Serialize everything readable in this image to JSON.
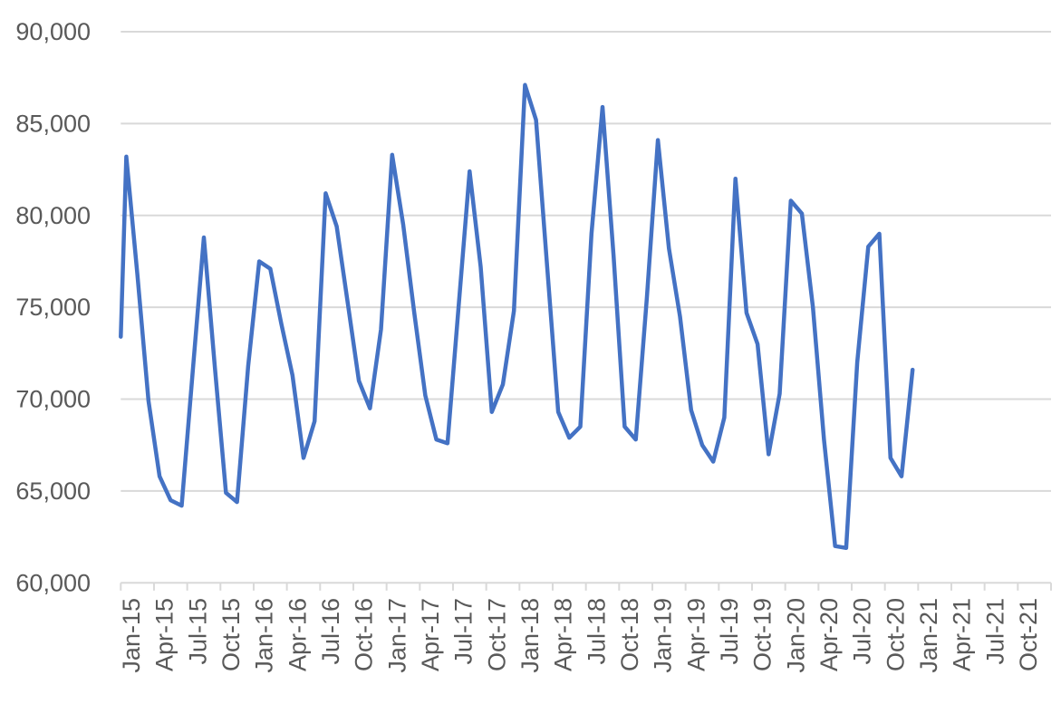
{
  "chart_data": {
    "type": "line",
    "title": "",
    "legend": "none",
    "grid": "horizontal",
    "series": [
      {
        "name": "monthly-series",
        "categories": [
          "Jan-15",
          "Feb-15",
          "Mar-15",
          "Apr-15",
          "May-15",
          "Jun-15",
          "Jul-15",
          "Aug-15",
          "Sep-15",
          "Oct-15",
          "Nov-15",
          "Dec-15",
          "Jan-16",
          "Feb-16",
          "Mar-16",
          "Apr-16",
          "May-16",
          "Jun-16",
          "Jul-16",
          "Aug-16",
          "Sep-16",
          "Oct-16",
          "Nov-16",
          "Dec-16",
          "Jan-17",
          "Feb-17",
          "Mar-17",
          "Apr-17",
          "May-17",
          "Jun-17",
          "Jul-17",
          "Aug-17",
          "Sep-17",
          "Oct-17",
          "Nov-17",
          "Dec-17",
          "Jan-18",
          "Feb-18",
          "Mar-18",
          "Apr-18",
          "May-18",
          "Jun-18",
          "Jul-18",
          "Aug-18",
          "Sep-18",
          "Oct-18",
          "Nov-18",
          "Dec-18",
          "Jan-19",
          "Feb-19",
          "Mar-19",
          "Apr-19",
          "May-19",
          "Jun-19",
          "Jul-19",
          "Aug-19",
          "Sep-19",
          "Oct-19",
          "Nov-19",
          "Dec-19",
          "Jan-20",
          "Feb-20",
          "Mar-20",
          "Apr-20",
          "May-20",
          "Jun-20",
          "Jul-20",
          "Aug-20",
          "Sep-20",
          "Oct-20",
          "Nov-20",
          "Dec-20"
        ],
        "values": [
          83200,
          76800,
          69900,
          65800,
          64500,
          64200,
          71500,
          78800,
          71700,
          64900,
          64400,
          71800,
          77500,
          77100,
          74100,
          71300,
          66800,
          68800,
          81200,
          79400,
          75200,
          71000,
          69500,
          73800,
          83300,
          79500,
          74700,
          70200,
          67800,
          67600,
          75000,
          82400,
          77200,
          69300,
          70800,
          74800,
          87100,
          85200,
          77200,
          69300,
          67900,
          68500,
          79000,
          85900,
          77800,
          68500,
          67800,
          75500,
          84100,
          78200,
          74500,
          69400,
          67500,
          66600,
          69000,
          82000,
          74700,
          73000,
          67000,
          70300,
          80800,
          80100,
          75000,
          67800,
          62000,
          61900,
          72000,
          78300,
          79000,
          66800,
          65800,
          71600
        ],
        "left_edge_entry_value": 73400
      }
    ],
    "x_axis": {
      "total_month_slots": 84,
      "tick_every_months": 3,
      "tick_labels": [
        "Jan-15",
        "Apr-15",
        "Jul-15",
        "Oct-15",
        "Jan-16",
        "Apr-16",
        "Jul-16",
        "Oct-16",
        "Jan-17",
        "Apr-17",
        "Jul-17",
        "Oct-17",
        "Jan-18",
        "Apr-18",
        "Jul-18",
        "Oct-18",
        "Jan-19",
        "Apr-19",
        "Jul-19",
        "Oct-19",
        "Jan-20",
        "Apr-20",
        "Jul-20",
        "Oct-20",
        "Jan-21",
        "Apr-21",
        "Jul-21",
        "Oct-21"
      ],
      "label_rotation_degrees": -90
    },
    "y_axis": {
      "min": 60000,
      "max": 90000,
      "step": 5000,
      "tick_labels": [
        "90,000",
        "85,000",
        "80,000",
        "75,000",
        "70,000",
        "65,000",
        "60,000"
      ]
    },
    "colors": {
      "line": "#4472C4",
      "gridline": "#D9D9D9",
      "axis": "#D9D9D9",
      "tick": "#D9D9D9",
      "label": "#595959",
      "background": "#FFFFFF"
    }
  }
}
